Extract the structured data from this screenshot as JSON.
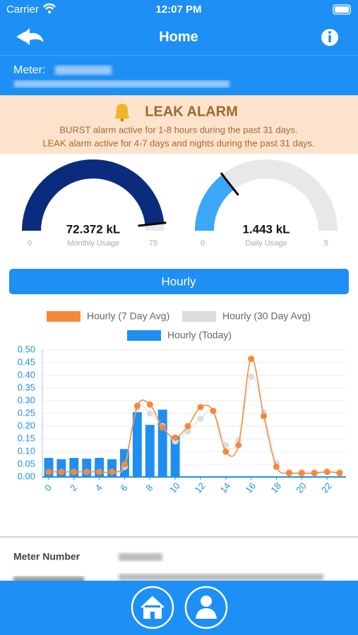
{
  "status_bar": {
    "carrier": "Carrier",
    "time": "12:07 PM"
  },
  "header": {
    "title": "Home"
  },
  "meter": {
    "label": "Meter:"
  },
  "alarm": {
    "title": "LEAK ALARM",
    "lines": [
      "BURST alarm active for 1-8 hours during the past 31 days.",
      "LEAK alarm active for 4-7 days and nights during the past 31 days."
    ]
  },
  "gauges": [
    {
      "value": 72.372,
      "value_label": "72.372 kL",
      "label": "Monthly Usage",
      "min": 0,
      "max": 75,
      "color": "#0b2c7c"
    },
    {
      "value": 1.443,
      "value_label": "1.443 kL",
      "label": "Daily Usage",
      "min": 0,
      "max": 5,
      "color": "#3aa8f6"
    }
  ],
  "tab": {
    "label": "Hourly"
  },
  "chart_data": {
    "type": "line",
    "x": [
      0,
      1,
      2,
      3,
      4,
      5,
      6,
      7,
      8,
      9,
      10,
      11,
      12,
      13,
      14,
      15,
      16,
      17,
      18,
      19,
      20,
      21,
      22,
      23
    ],
    "series": [
      {
        "name": "Hourly (7 Day Avg)",
        "color": "#f5893b",
        "values": [
          0.02,
          0.02,
          0.02,
          0.02,
          0.02,
          0.02,
          0.05,
          0.28,
          0.285,
          0.195,
          0.155,
          0.2,
          0.275,
          0.26,
          0.1,
          0.125,
          0.465,
          0.24,
          0.04,
          0.015,
          0.015,
          0.015,
          0.02,
          0.015
        ]
      },
      {
        "name": "Hourly (30 Day Avg)",
        "color": "#dcdcdc",
        "values": [
          0.02,
          0.02,
          0.02,
          0.02,
          0.02,
          0.02,
          0.04,
          0.27,
          0.25,
          0.2,
          0.14,
          0.18,
          0.23,
          0.26,
          0.125,
          0.145,
          0.395,
          0.255,
          0.055,
          0.02,
          0.02,
          0.02,
          0.02,
          0.02
        ]
      },
      {
        "name": "Hourly (Today)",
        "color": "#1e8ff0",
        "type": "bar",
        "values": [
          0.075,
          0.07,
          0.075,
          0.072,
          0.075,
          0.07,
          0.11,
          0.255,
          0.205,
          0.265,
          0.16,
          null,
          null,
          null,
          null,
          null,
          null,
          null,
          null,
          null,
          null,
          null,
          null,
          null
        ]
      }
    ],
    "xlim": [
      -0.5,
      23.5
    ],
    "xticks": [
      0,
      2,
      4,
      6,
      8,
      10,
      12,
      14,
      16,
      18,
      20,
      22
    ],
    "ylim": [
      0,
      0.5
    ],
    "yticks": [
      {
        "value": 0,
        "label": "0.00"
      },
      {
        "value": 0.05,
        "label": "0.05"
      },
      {
        "value": 0.1,
        "label": "0.10"
      },
      {
        "value": 0.15,
        "label": "0.15"
      },
      {
        "value": 0.2,
        "label": "0.20"
      },
      {
        "value": 0.25,
        "label": "0.25"
      },
      {
        "value": 0.3,
        "label": "0.30"
      },
      {
        "value": 0.35,
        "label": "0.35"
      },
      {
        "value": 0.4,
        "label": "0.40"
      },
      {
        "value": 0.45,
        "label": "0.45"
      },
      {
        "value": 0.5,
        "label": "0.50"
      }
    ],
    "grid": true
  },
  "details": {
    "rows": [
      {
        "label": "Meter Number"
      }
    ]
  }
}
